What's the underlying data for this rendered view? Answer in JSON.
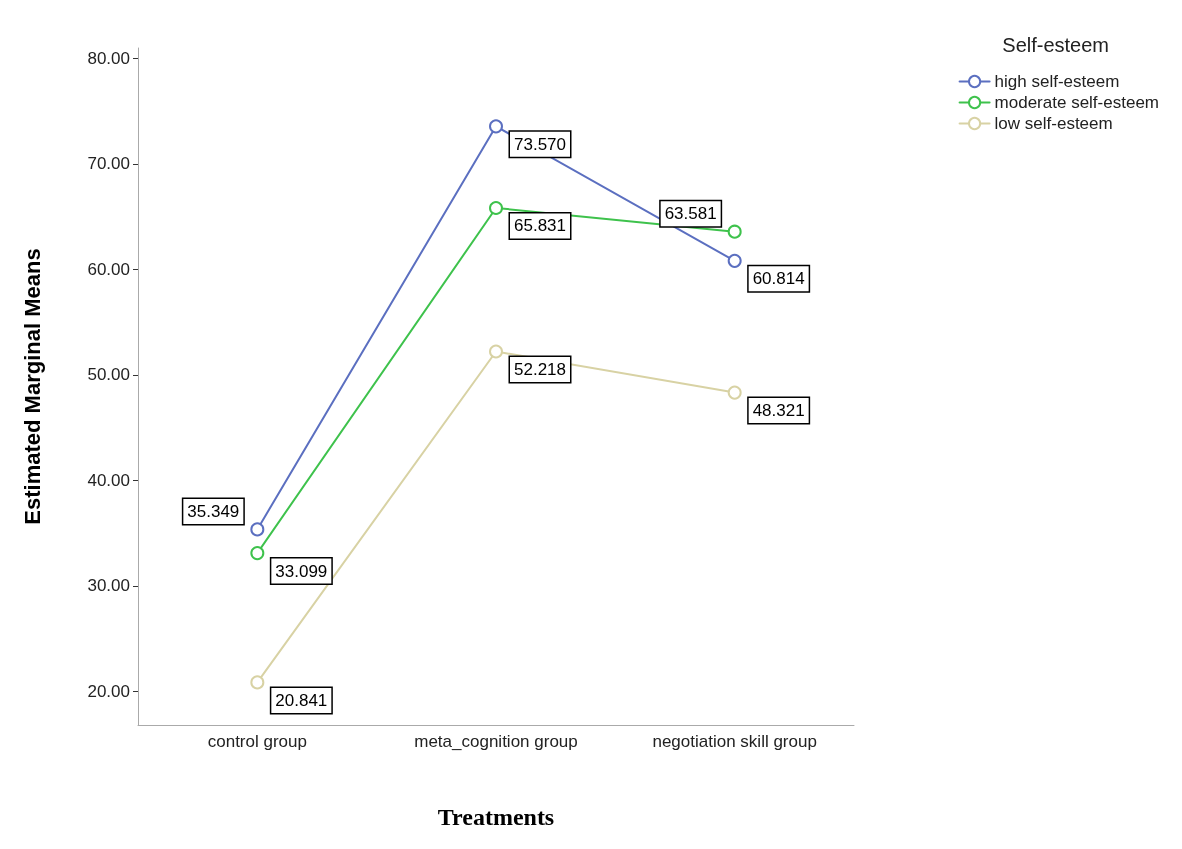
{
  "chart_data": {
    "type": "line",
    "xlabel": "Treatments",
    "ylabel": "Estimated Marginal Means",
    "legend_title": "Self-esteem",
    "categories": [
      "control group",
      "meta_cognition group",
      "negotiation skill group"
    ],
    "series": [
      {
        "name": "high self-esteem",
        "color": "#5b6fc0",
        "values": [
          35.349,
          73.57,
          60.814
        ],
        "value_labels": [
          "35.349",
          "73.570",
          "60.814"
        ]
      },
      {
        "name": "moderate self-esteem",
        "color": "#3ec24c",
        "values": [
          33.099,
          65.831,
          63.581
        ],
        "value_labels": [
          "33.099",
          "65.831",
          "63.581"
        ]
      },
      {
        "name": "low self-esteem",
        "color": "#d8d2a4",
        "values": [
          20.841,
          52.218,
          48.321
        ],
        "value_labels": [
          "20.841",
          "52.218",
          "48.321"
        ]
      }
    ],
    "ylim": [
      16.8,
      81
    ],
    "yticks": [
      {
        "value": 20,
        "label": "20.00"
      },
      {
        "value": 30,
        "label": "30.00"
      },
      {
        "value": 40,
        "label": "40.00"
      },
      {
        "value": 50,
        "label": "50.00"
      },
      {
        "value": 60,
        "label": "60.00"
      },
      {
        "value": 70,
        "label": "70.00"
      },
      {
        "value": 80,
        "label": "80.00"
      }
    ],
    "grid": false,
    "legend": "top right",
    "marker": "circle",
    "line_style": "solid"
  }
}
